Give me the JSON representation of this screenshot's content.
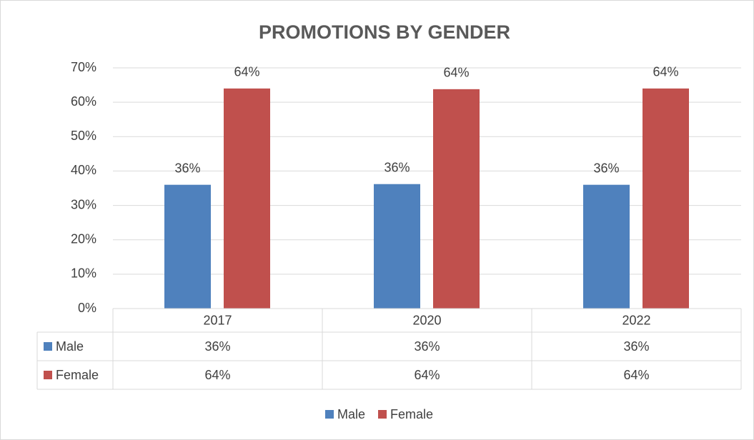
{
  "chart_data": {
    "type": "bar",
    "title": "PROMOTIONS BY GENDER",
    "categories": [
      "2017",
      "2020",
      "2022"
    ],
    "series": [
      {
        "name": "Male",
        "color": "#4f81bd",
        "values": [
          36,
          36.2,
          36
        ],
        "value_labels": [
          "36%",
          "36%",
          "36%"
        ]
      },
      {
        "name": "Female",
        "color": "#c0504d",
        "values": [
          64,
          63.8,
          64
        ],
        "value_labels": [
          "64%",
          "64%",
          "64%"
        ]
      }
    ],
    "ylim": [
      0,
      70
    ],
    "yticks": [
      {
        "value": 0,
        "label": "0%"
      },
      {
        "value": 10,
        "label": "10%"
      },
      {
        "value": 20,
        "label": "20%"
      },
      {
        "value": 30,
        "label": "30%"
      },
      {
        "value": 40,
        "label": "40%"
      },
      {
        "value": 50,
        "label": "50%"
      },
      {
        "value": 60,
        "label": "60%"
      },
      {
        "value": 70,
        "label": "70%"
      }
    ],
    "grid": true,
    "data_table": true,
    "legend": "bottom"
  }
}
